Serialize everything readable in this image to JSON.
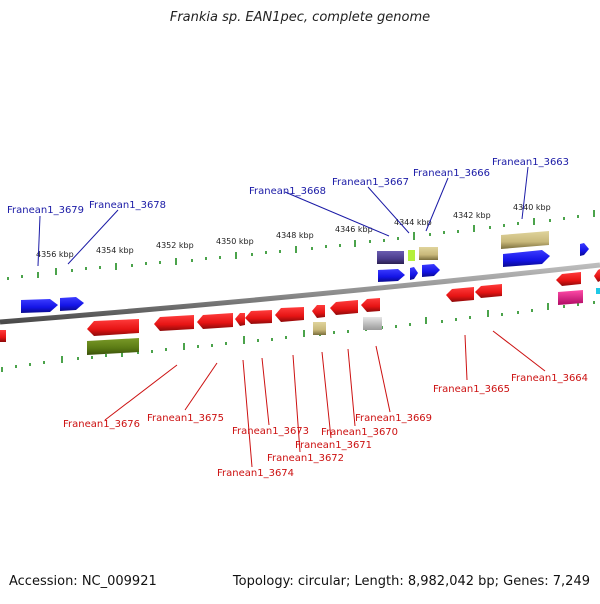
{
  "title": "Frankia sp. EAN1pec, complete genome",
  "footer": {
    "accession": "Accession: NC_009921",
    "summary": "Topology: circular; Length: 8,982,042 bp; Genes: 7,249"
  },
  "scale_labels": [
    "4356 kbp",
    "4354 kbp",
    "4352 kbp",
    "4350 kbp",
    "4348 kbp",
    "4346 kbp",
    "4344 kbp",
    "4342 kbp",
    "4340 kbp"
  ],
  "upper_genes": [
    "Franean1_3679",
    "Franean1_3678",
    "Franean1_3668",
    "Franean1_3667",
    "Franean1_3666",
    "Franean1_3663"
  ],
  "lower_genes": [
    "Franean1_3676",
    "Franean1_3675",
    "Franean1_3674",
    "Franean1_3673",
    "Franean1_3672",
    "Franean1_3671",
    "Franean1_3670",
    "Franean1_3669",
    "Franean1_3665",
    "Franean1_3664"
  ],
  "colors": {
    "backbone": "#8c8c8c",
    "tick": "#1e8c1e",
    "forward_gene": "#1414e6",
    "reverse_gene": "#e61414",
    "rna_tan": "#c8b87a",
    "olive": "#5a7a14",
    "purple": "#4a3c8c",
    "lime": "#b4f03c",
    "magenta": "#e61e8c",
    "cyan": "#1ec8e6",
    "gray": "#c8c8c8",
    "label_blue": "#1a1aa6",
    "label_red": "#cc1111"
  }
}
